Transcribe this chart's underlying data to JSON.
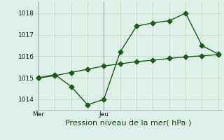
{
  "background_color": "#dff0e8",
  "grid_color": "#c0ddd0",
  "line_color": "#1a5c1a",
  "title": "Pression niveau de la mer( hPa )",
  "ylim": [
    1013.5,
    1018.5
  ],
  "yticks": [
    1014,
    1015,
    1016,
    1017,
    1018
  ],
  "xlim": [
    -0.2,
    11.2
  ],
  "x_mer_pos": 0,
  "x_jeu_pos": 4,
  "line1_x": [
    0,
    1,
    2,
    3,
    4,
    5,
    6,
    7,
    8,
    9,
    10,
    11
  ],
  "line1_y": [
    1015.0,
    1015.1,
    1015.25,
    1015.4,
    1015.55,
    1015.65,
    1015.75,
    1015.82,
    1015.9,
    1015.97,
    1016.02,
    1016.08
  ],
  "line2_x": [
    0,
    1,
    2,
    3,
    4,
    5,
    6,
    7,
    8,
    9,
    10,
    11
  ],
  "line2_y": [
    1015.0,
    1015.15,
    1014.6,
    1013.75,
    1014.0,
    1016.2,
    1017.4,
    1017.55,
    1017.65,
    1018.0,
    1016.5,
    1016.1
  ],
  "title_fontsize": 8,
  "tick_fontsize": 6.5
}
